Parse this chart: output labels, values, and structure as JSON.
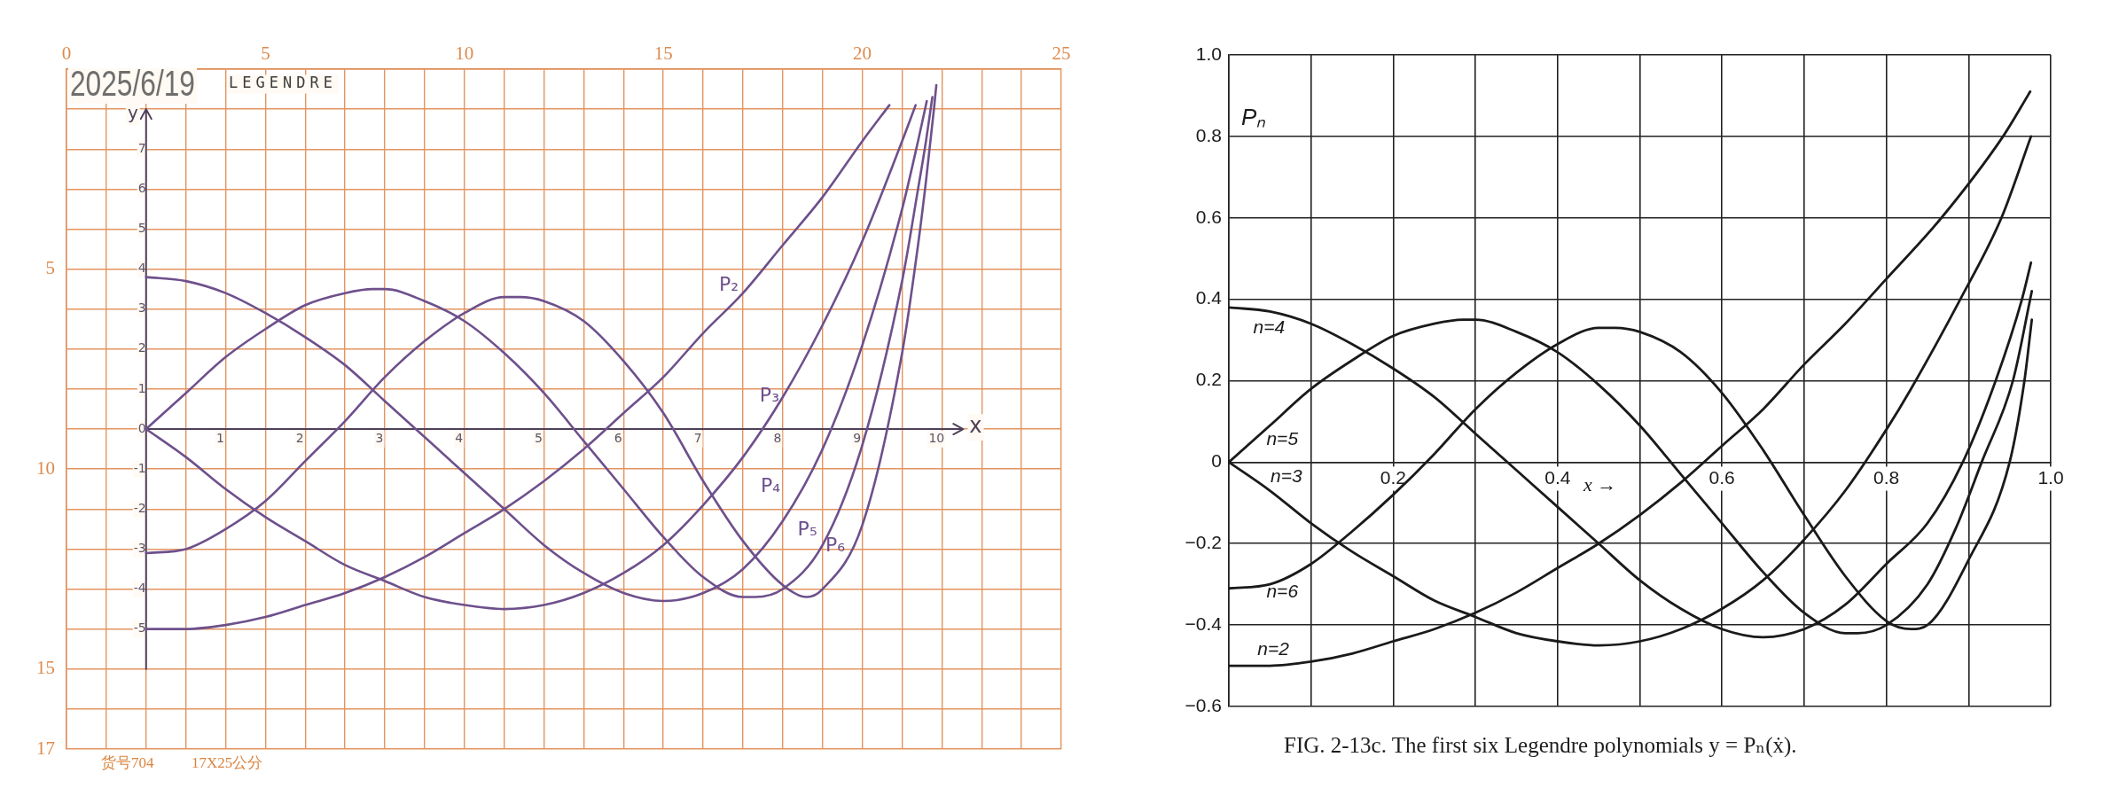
{
  "chart_data": [
    {
      "type": "line",
      "title": "LEGENDRE",
      "xlabel": "x",
      "ylabel": "y",
      "annotations": [
        "2025/6/19",
        "货号704",
        "17X25公分"
      ],
      "xlim": [
        -1,
        11.5
      ],
      "ylim": [
        -8,
        9
      ],
      "xticks": [
        1,
        2,
        3,
        4,
        5,
        6,
        7,
        8,
        9,
        10
      ],
      "yticks": [
        -5,
        -4,
        -3,
        -2,
        -1,
        0,
        1,
        2,
        3,
        4,
        5,
        6,
        7
      ],
      "x2lim": [
        0,
        25
      ],
      "x2ticks": [
        0,
        {
          "value": 1,
          "label": null
        },
        {
          "value": 2,
          "label": null
        },
        {
          "value": 3,
          "label": null
        },
        {
          "value": 4,
          "label": null
        },
        5,
        {
          "value": 6,
          "label": null
        },
        {
          "value": 7,
          "label": null
        },
        {
          "value": 8,
          "label": null
        },
        {
          "value": 9,
          "label": null
        },
        10,
        {
          "value": 11,
          "label": null
        },
        {
          "value": 12,
          "label": null
        },
        {
          "value": 13,
          "label": null
        },
        {
          "value": 14,
          "label": null
        },
        15,
        {
          "value": 16,
          "label": null
        },
        {
          "value": 17,
          "label": null
        },
        {
          "value": 18,
          "label": null
        },
        {
          "value": 19,
          "label": null
        },
        20,
        {
          "value": 21,
          "label": null
        },
        {
          "value": 22,
          "label": null
        },
        {
          "value": 23,
          "label": null
        },
        {
          "value": 24,
          "label": null
        },
        25
      ],
      "y2lim": [
        17,
        0
      ],
      "y2ticks": [
        {
          "value": 0,
          "label": null
        },
        {
          "value": 1,
          "label": null
        },
        {
          "value": 2,
          "label": null
        },
        {
          "value": 3,
          "label": null
        },
        {
          "value": 4,
          "label": null
        },
        5,
        {
          "value": 6,
          "label": null
        },
        {
          "value": 7,
          "label": null
        },
        {
          "value": 8,
          "label": null
        },
        {
          "value": 9,
          "label": null
        },
        10,
        {
          "value": 11,
          "label": null
        },
        {
          "value": 12,
          "label": null
        },
        {
          "value": 13,
          "label": null
        },
        {
          "value": 14,
          "label": null
        },
        15,
        {
          "value": 16,
          "label": null
        },
        17
      ],
      "grid": true,
      "series": [
        {
          "name": "P₂",
          "color": "#6e508c",
          "x": [
            0,
            0.5,
            1,
            1.5,
            2,
            2.5,
            3,
            3.5,
            4,
            4.5,
            5,
            5.5,
            6,
            6.5,
            7,
            7.5,
            8,
            8.5,
            9,
            9.34
          ],
          "values": [
            -5,
            -5,
            -4.9,
            -4.7,
            -4.4,
            -4.1,
            -3.7,
            -3.2,
            -2.6,
            -2,
            -1.3,
            -0.5,
            0.4,
            1.3,
            2.4,
            3.4,
            4.6,
            5.8,
            7.2,
            8.1
          ]
        },
        {
          "name": "P₃",
          "color": "#6e508c",
          "x": [
            0,
            0.5,
            1,
            1.5,
            2,
            2.5,
            3,
            3.5,
            4,
            4.5,
            5,
            5.5,
            6,
            6.5,
            7,
            7.5,
            8,
            8.5,
            9,
            9.5,
            9.67
          ],
          "values": [
            0,
            -0.7,
            -1.5,
            -2.2,
            -2.8,
            -3.4,
            -3.8,
            -4.2,
            -4.4,
            -4.5,
            -4.4,
            -4.1,
            -3.6,
            -2.9,
            -1.9,
            -0.7,
            0.8,
            2.6,
            4.7,
            7.2,
            8.1
          ]
        },
        {
          "name": "P₄",
          "color": "#6e508c",
          "x": [
            0,
            0.5,
            1,
            1.5,
            2,
            2.5,
            3,
            3.5,
            4,
            4.5,
            5,
            5.5,
            6,
            6.5,
            7,
            7.5,
            8,
            8.5,
            9,
            9.5,
            9.7,
            9.81
          ],
          "values": [
            3.8,
            3.7,
            3.4,
            2.9,
            2.3,
            1.6,
            0.7,
            -0.2,
            -1.1,
            -2,
            -2.9,
            -3.6,
            -4.1,
            -4.3,
            -4.1,
            -3.5,
            -2.3,
            -0.5,
            2.1,
            5.5,
            7.2,
            8.2
          ]
        },
        {
          "name": "P₅",
          "color": "#6e508c",
          "x": [
            0,
            0.5,
            1,
            1.5,
            2,
            2.5,
            2.85,
            3,
            3.5,
            4,
            4.5,
            5,
            5.5,
            6,
            6.5,
            7,
            7.5,
            7.65,
            8,
            8.5,
            9,
            9.5,
            9.7,
            9.8,
            9.88
          ],
          "values": [
            0,
            0.9,
            1.8,
            2.5,
            3.1,
            3.4,
            3.5,
            3.5,
            3.2,
            2.7,
            1.9,
            0.9,
            -0.3,
            -1.5,
            -2.7,
            -3.7,
            -4.2,
            -4.2,
            -4,
            -2.9,
            -0.4,
            3.7,
            6,
            7.2,
            8.3
          ]
        },
        {
          "name": "P₆",
          "color": "#6e508c",
          "x": [
            0,
            0.5,
            1,
            1.5,
            2,
            2.5,
            3,
            3.5,
            4,
            4.5,
            4.7,
            5,
            5.5,
            6,
            6.5,
            7,
            7.5,
            8,
            8.3,
            8.5,
            9,
            9.5,
            9.7,
            9.8,
            9.9,
            9.93
          ],
          "values": [
            -3.1,
            -3,
            -2.5,
            -1.8,
            -0.8,
            0.2,
            1.3,
            2.2,
            2.9,
            3.3,
            3.3,
            3.2,
            2.7,
            1.7,
            0.4,
            -1.3,
            -2.8,
            -3.9,
            -4.2,
            -4,
            -2.4,
            1.9,
            4.6,
            6.2,
            8,
            8.6
          ]
        }
      ]
    },
    {
      "type": "line",
      "xlabel": "x →",
      "ylabel": "Pₙ",
      "annotations": [
        "FIG. 2-13c. The first six Legendre polynomials y = Pₙ(ẋ)."
      ],
      "xlim": [
        0,
        1
      ],
      "ylim": [
        -0.6,
        1
      ],
      "xticks": [
        {
          "value": 0,
          "label": null
        },
        {
          "value": 0.1,
          "label": null
        },
        0.2,
        {
          "value": 0.3,
          "label": null
        },
        0.4,
        {
          "value": 0.5,
          "label": null
        },
        0.6,
        {
          "value": 0.7,
          "label": null
        },
        0.8,
        {
          "value": 0.9,
          "label": null
        },
        {
          "value": 1,
          "label": "1.0"
        }
      ],
      "yticks": [
        {
          "value": -0.6,
          "label": "−0.6"
        },
        {
          "value": -0.4,
          "label": "−0.4"
        },
        {
          "value": -0.2,
          "label": "−0.2"
        },
        0,
        0.2,
        0.4,
        0.6,
        0.8,
        {
          "value": 1,
          "label": "1.0"
        }
      ],
      "grid": true,
      "series": [
        {
          "name": "n=2",
          "color": "#1a1a1a",
          "x": [
            0,
            0.05,
            0.1,
            0.15,
            0.2,
            0.25,
            0.3,
            0.35,
            0.4,
            0.45,
            0.5,
            0.55,
            0.6,
            0.65,
            0.7,
            0.75,
            0.8,
            0.867,
            0.942,
            0.975
          ],
          "values": [
            -0.5,
            -0.5,
            -0.49,
            -0.47,
            -0.44,
            -0.41,
            -0.37,
            -0.32,
            -0.26,
            -0.2,
            -0.13,
            -0.05,
            0.04,
            0.13,
            0.24,
            0.34,
            0.45,
            0.6,
            0.8,
            0.91
          ]
        },
        {
          "name": "n=3",
          "color": "#1a1a1a",
          "x": [
            0,
            0.05,
            0.1,
            0.15,
            0.2,
            0.25,
            0.3,
            0.35,
            0.4,
            0.45,
            0.5,
            0.55,
            0.6,
            0.65,
            0.7,
            0.75,
            0.8,
            0.83,
            0.89,
            0.94,
            0.976
          ],
          "values": [
            0,
            -0.07,
            -0.15,
            -0.22,
            -0.28,
            -0.34,
            -0.38,
            -0.42,
            -0.44,
            -0.45,
            -0.44,
            -0.41,
            -0.36,
            -0.29,
            -0.19,
            -0.07,
            0.08,
            0.18,
            0.4,
            0.6,
            0.8
          ]
        },
        {
          "name": "n=4",
          "color": "#1a1a1a",
          "x": [
            0,
            0.05,
            0.1,
            0.15,
            0.2,
            0.25,
            0.3,
            0.35,
            0.4,
            0.45,
            0.5,
            0.55,
            0.6,
            0.65,
            0.7,
            0.75,
            0.8,
            0.85,
            0.893,
            0.933,
            0.965,
            0.976
          ],
          "values": [
            0.38,
            0.37,
            0.34,
            0.29,
            0.23,
            0.16,
            0.07,
            -0.02,
            -0.11,
            -0.2,
            -0.29,
            -0.36,
            -0.41,
            -0.43,
            -0.41,
            -0.35,
            -0.25,
            -0.15,
            0,
            0.2,
            0.4,
            0.49
          ]
        },
        {
          "name": "n=5",
          "color": "#1a1a1a",
          "x": [
            0,
            0.05,
            0.1,
            0.15,
            0.2,
            0.25,
            0.285,
            0.3,
            0.35,
            0.4,
            0.45,
            0.5,
            0.55,
            0.6,
            0.65,
            0.7,
            0.75,
            0.765,
            0.8,
            0.85,
            0.885,
            0.916,
            0.954,
            0.977
          ],
          "values": [
            0,
            0.09,
            0.18,
            0.25,
            0.31,
            0.34,
            0.35,
            0.35,
            0.32,
            0.27,
            0.19,
            0.09,
            -0.03,
            -0.15,
            -0.27,
            -0.37,
            -0.42,
            -0.42,
            -0.4,
            -0.3,
            -0.16,
            0,
            0.2,
            0.42
          ]
        },
        {
          "name": "n=6",
          "color": "#1a1a1a",
          "x": [
            0,
            0.05,
            0.1,
            0.15,
            0.2,
            0.25,
            0.3,
            0.35,
            0.4,
            0.45,
            0.47,
            0.5,
            0.55,
            0.6,
            0.65,
            0.7,
            0.75,
            0.8,
            0.83,
            0.85,
            0.9,
            0.95,
            0.968,
            0.977
          ],
          "values": [
            -0.31,
            -0.3,
            -0.25,
            -0.17,
            -0.08,
            0.02,
            0.13,
            0.22,
            0.29,
            0.33,
            0.33,
            0.32,
            0.27,
            0.17,
            0.03,
            -0.13,
            -0.28,
            -0.39,
            -0.41,
            -0.4,
            -0.24,
            0,
            0.2,
            0.35
          ]
        }
      ]
    }
  ]
}
